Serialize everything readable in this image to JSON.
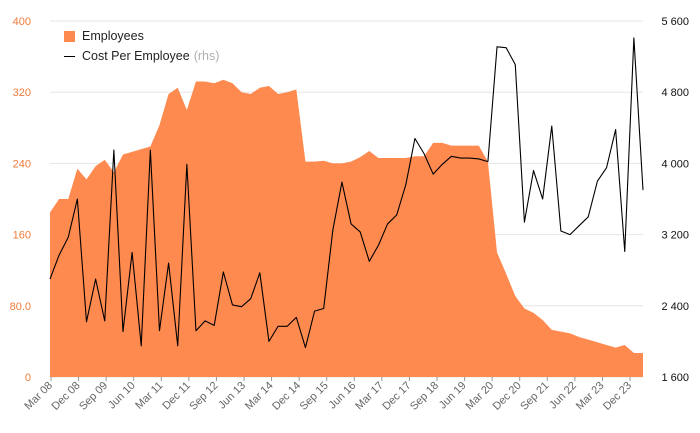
{
  "chart_data": {
    "type": "area+line",
    "x_tick_labels": [
      "Mar 08",
      "Dec 08",
      "Sep 09",
      "Jun 10",
      "Mar 11",
      "Dec 11",
      "Sep 12",
      "Jun 13",
      "Mar 14",
      "Dec 14",
      "Sep 15",
      "Jun 16",
      "Mar 17",
      "Dec 17",
      "Sep 18",
      "Jun 19",
      "Mar 20",
      "Dec 20",
      "Sep 21",
      "Jun 22",
      "Mar 23",
      "Dec 23"
    ],
    "y_left": {
      "ticks": [
        "0",
        "80.0",
        "160",
        "240",
        "320",
        "400"
      ],
      "range": [
        0,
        400
      ]
    },
    "y_right": {
      "ticks": [
        "1 600",
        "2 400",
        "3 200",
        "4 000",
        "4 800",
        "5 600"
      ],
      "range": [
        1600,
        5600
      ]
    },
    "grid": true,
    "series": [
      {
        "name": "Employees",
        "kind": "area",
        "axis": "left",
        "color": "#ff8a50",
        "values": [
          185,
          200,
          200,
          234,
          222,
          237,
          244,
          230,
          250,
          253,
          256,
          259,
          283,
          318,
          325,
          300,
          332,
          332,
          330,
          334,
          330,
          320,
          318,
          325,
          327,
          318,
          320,
          323,
          242,
          242,
          243,
          240,
          240,
          242,
          247,
          254,
          246,
          246,
          246,
          246,
          248,
          248,
          263,
          263,
          260,
          260,
          260,
          260,
          242,
          140,
          116,
          91,
          77,
          72,
          64,
          53,
          51,
          49,
          45,
          42,
          39,
          36,
          33,
          36,
          27,
          27
        ]
      },
      {
        "name": "Cost Per Employee",
        "kind": "line",
        "axis": "right",
        "color": "#000000",
        "values": [
          2700,
          2970,
          3170,
          3600,
          2220,
          2700,
          2230,
          4150,
          2110,
          3000,
          1950,
          4150,
          2120,
          2880,
          1950,
          3990,
          2120,
          2230,
          2180,
          2780,
          2410,
          2390,
          2480,
          2770,
          2000,
          2170,
          2170,
          2270,
          1930,
          2340,
          2370,
          3250,
          3790,
          3320,
          3230,
          2900,
          3080,
          3320,
          3420,
          3760,
          4280,
          4110,
          3880,
          3990,
          4080,
          4060,
          4060,
          4050,
          4020,
          5310,
          5300,
          5110,
          3340,
          3920,
          3600,
          4420,
          3240,
          3200,
          3300,
          3400,
          3800,
          3950,
          4380,
          3010,
          5410,
          3700
        ]
      }
    ]
  },
  "legend": {
    "employees_label": "Employees",
    "cost_label": "Cost Per Employee",
    "rhs_note": "(rhs)",
    "employees_color": "#ff8a50",
    "cost_color": "#000000"
  }
}
